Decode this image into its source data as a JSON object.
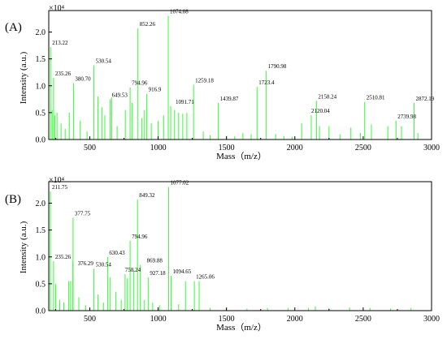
{
  "figure": {
    "xlabel": "Mass（m/z）",
    "ylabel": "Intensity (a.u.)",
    "y_multiplier": "×10⁴"
  },
  "chart_data": [
    {
      "type": "bar",
      "panel_label": "(A)",
      "xlabel": "Mass（m/z）",
      "ylabel": "Intensity (a.u.)",
      "y_multiplier": "×10⁴",
      "xlim": [
        200,
        3000
      ],
      "ylim": [
        0,
        2.4
      ],
      "grid": false,
      "color": "#33ff33",
      "x_ticks": [
        "500",
        "1000",
        "1500",
        "2000",
        "2500",
        "3000"
      ],
      "y_ticks": [
        "0.0",
        "0.5",
        "1.0",
        "1.5",
        "2.0"
      ],
      "labeled_peaks": [
        {
          "mz": 213.22,
          "intensity": 1.72,
          "label": "213.22"
        },
        {
          "mz": 235.26,
          "intensity": 1.15,
          "label": "235.26"
        },
        {
          "mz": 380.7,
          "intensity": 1.05,
          "label": "380.70"
        },
        {
          "mz": 530.54,
          "intensity": 1.38,
          "label": "530.54"
        },
        {
          "mz": 649.53,
          "intensity": 0.75,
          "label": "649.53"
        },
        {
          "mz": 794.96,
          "intensity": 0.97,
          "label": "794.96"
        },
        {
          "mz": 852.26,
          "intensity": 2.07,
          "label": "852.26"
        },
        {
          "mz": 916.9,
          "intensity": 0.85,
          "label": "916.9"
        },
        {
          "mz": 1074.08,
          "intensity": 2.3,
          "label": "1074.08"
        },
        {
          "mz": 1091.71,
          "intensity": 0.62,
          "label": "1091.71"
        },
        {
          "mz": 1259.18,
          "intensity": 1.02,
          "label": "1259.18"
        },
        {
          "mz": 1439.87,
          "intensity": 0.68,
          "label": "1439.87"
        },
        {
          "mz": 1723.4,
          "intensity": 0.98,
          "label": "1723.4"
        },
        {
          "mz": 1790.98,
          "intensity": 1.28,
          "label": "1790.98"
        },
        {
          "mz": 2120.04,
          "intensity": 0.45,
          "label": "2120.04"
        },
        {
          "mz": 2158.24,
          "intensity": 0.72,
          "label": "2158.24"
        },
        {
          "mz": 2510.81,
          "intensity": 0.7,
          "label": "2510.81"
        },
        {
          "mz": 2739.98,
          "intensity": 0.35,
          "label": "2739.98"
        },
        {
          "mz": 2872.19,
          "intensity": 0.68,
          "label": "2872.19"
        }
      ],
      "minor_peaks": [
        {
          "mz": 225,
          "intensity": 0.55
        },
        {
          "mz": 245,
          "intensity": 0.45
        },
        {
          "mz": 260,
          "intensity": 0.5
        },
        {
          "mz": 290,
          "intensity": 0.3
        },
        {
          "mz": 320,
          "intensity": 0.2
        },
        {
          "mz": 350,
          "intensity": 0.5
        },
        {
          "mz": 430,
          "intensity": 0.35
        },
        {
          "mz": 480,
          "intensity": 0.15
        },
        {
          "mz": 560,
          "intensity": 0.8
        },
        {
          "mz": 590,
          "intensity": 0.6
        },
        {
          "mz": 610,
          "intensity": 0.45
        },
        {
          "mz": 660,
          "intensity": 0.78
        },
        {
          "mz": 700,
          "intensity": 0.25
        },
        {
          "mz": 760,
          "intensity": 0.55
        },
        {
          "mz": 810,
          "intensity": 0.68
        },
        {
          "mz": 880,
          "intensity": 0.4
        },
        {
          "mz": 900,
          "intensity": 0.55
        },
        {
          "mz": 950,
          "intensity": 0.3
        },
        {
          "mz": 1000,
          "intensity": 0.35
        },
        {
          "mz": 1040,
          "intensity": 0.45
        },
        {
          "mz": 1120,
          "intensity": 0.55
        },
        {
          "mz": 1150,
          "intensity": 0.5
        },
        {
          "mz": 1180,
          "intensity": 0.48
        },
        {
          "mz": 1210,
          "intensity": 0.5
        },
        {
          "mz": 1330,
          "intensity": 0.15
        },
        {
          "mz": 1380,
          "intensity": 0.08
        },
        {
          "mz": 1500,
          "intensity": 0.07
        },
        {
          "mz": 1560,
          "intensity": 0.06
        },
        {
          "mz": 1620,
          "intensity": 0.12
        },
        {
          "mz": 1680,
          "intensity": 0.1
        },
        {
          "mz": 1860,
          "intensity": 0.1
        },
        {
          "mz": 1920,
          "intensity": 0.06
        },
        {
          "mz": 1980,
          "intensity": 0.05
        },
        {
          "mz": 2050,
          "intensity": 0.3
        },
        {
          "mz": 2180,
          "intensity": 0.25
        },
        {
          "mz": 2250,
          "intensity": 0.25
        },
        {
          "mz": 2330,
          "intensity": 0.1
        },
        {
          "mz": 2410,
          "intensity": 0.22
        },
        {
          "mz": 2480,
          "intensity": 0.12
        },
        {
          "mz": 2560,
          "intensity": 0.28
        },
        {
          "mz": 2680,
          "intensity": 0.25
        },
        {
          "mz": 2780,
          "intensity": 0.25
        },
        {
          "mz": 2900,
          "intensity": 0.12
        }
      ]
    },
    {
      "type": "bar",
      "panel_label": "(B)",
      "xlabel": "Mass（m/z）",
      "ylabel": "Intensity (a.u.)",
      "y_multiplier": "×10⁴",
      "xlim": [
        200,
        3000
      ],
      "ylim": [
        0,
        2.4
      ],
      "grid": false,
      "color": "#33ff33",
      "x_ticks": [
        "500",
        "1000",
        "1500",
        "2000",
        "2500",
        "3000"
      ],
      "y_ticks": [
        "0.0",
        "0.5",
        "1.0",
        "1.5",
        "2.0"
      ],
      "labeled_peaks": [
        {
          "mz": 211.75,
          "intensity": 2.22,
          "label": "211.75"
        },
        {
          "mz": 235.26,
          "intensity": 0.92,
          "label": "235.26"
        },
        {
          "mz": 376.29,
          "intensity": 0.92,
          "label": "376.29"
        },
        {
          "mz": 377.75,
          "intensity": 1.73,
          "label": "377.75"
        },
        {
          "mz": 530.54,
          "intensity": 0.78,
          "label": "530.54"
        },
        {
          "mz": 630.43,
          "intensity": 1.0,
          "label": "630.43"
        },
        {
          "mz": 758.24,
          "intensity": 0.68,
          "label": "758.24"
        },
        {
          "mz": 794.96,
          "intensity": 1.3,
          "label": "794.96"
        },
        {
          "mz": 849.32,
          "intensity": 2.07,
          "label": "849.32"
        },
        {
          "mz": 869.88,
          "intensity": 0.85,
          "label": "869.88"
        },
        {
          "mz": 927.18,
          "intensity": 0.62,
          "label": "927.18"
        },
        {
          "mz": 1077.02,
          "intensity": 2.3,
          "label": "1077.02"
        },
        {
          "mz": 1094.65,
          "intensity": 0.65,
          "label": "1094.65"
        },
        {
          "mz": 1265.06,
          "intensity": 0.55,
          "label": "1265.06"
        }
      ],
      "minor_peaks": [
        {
          "mz": 250,
          "intensity": 0.5
        },
        {
          "mz": 280,
          "intensity": 0.2
        },
        {
          "mz": 310,
          "intensity": 0.15
        },
        {
          "mz": 345,
          "intensity": 0.55
        },
        {
          "mz": 360,
          "intensity": 0.55
        },
        {
          "mz": 420,
          "intensity": 0.25
        },
        {
          "mz": 470,
          "intensity": 0.1
        },
        {
          "mz": 560,
          "intensity": 0.3
        },
        {
          "mz": 600,
          "intensity": 0.15
        },
        {
          "mz": 650,
          "intensity": 0.62
        },
        {
          "mz": 690,
          "intensity": 0.35
        },
        {
          "mz": 730,
          "intensity": 0.2
        },
        {
          "mz": 775,
          "intensity": 0.6
        },
        {
          "mz": 820,
          "intensity": 0.75
        },
        {
          "mz": 900,
          "intensity": 0.2
        },
        {
          "mz": 960,
          "intensity": 0.15
        },
        {
          "mz": 1010,
          "intensity": 0.1
        },
        {
          "mz": 1150,
          "intensity": 0.12
        },
        {
          "mz": 1200,
          "intensity": 0.55
        },
        {
          "mz": 1300,
          "intensity": 0.55
        },
        {
          "mz": 1380,
          "intensity": 0.05
        },
        {
          "mz": 1500,
          "intensity": 0.05
        },
        {
          "mz": 1650,
          "intensity": 0.04
        },
        {
          "mz": 1800,
          "intensity": 0.05
        },
        {
          "mz": 1950,
          "intensity": 0.05
        },
        {
          "mz": 2100,
          "intensity": 0.05
        },
        {
          "mz": 2150,
          "intensity": 0.08
        },
        {
          "mz": 2250,
          "intensity": 0.05
        },
        {
          "mz": 2400,
          "intensity": 0.06
        },
        {
          "mz": 2550,
          "intensity": 0.05
        },
        {
          "mz": 2700,
          "intensity": 0.04
        },
        {
          "mz": 2850,
          "intensity": 0.05
        }
      ]
    }
  ]
}
